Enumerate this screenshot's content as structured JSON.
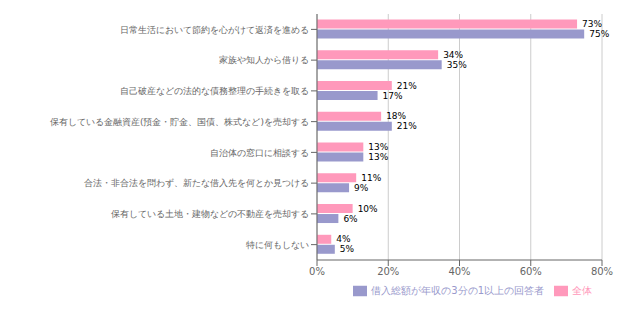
{
  "chart_data": {
    "type": "bar",
    "orientation": "horizontal",
    "categories": [
      "日常生活において節約を心がけて返済を進める",
      "家族や知人から借りる",
      "自己破産などの法的な債務整理の手続きを取る",
      "保有している金融資産(預金・貯金、国債、株式など)を売却する",
      "自治体の窓口に相談する",
      "合法・非合法を問わず、新たな借入先を何とか見つける",
      "保有している土地・建物などの不動産を売却する",
      "特に何もしない"
    ],
    "series": [
      {
        "name": "全体",
        "color": "#ff99bb",
        "values": [
          73,
          34,
          21,
          18,
          13,
          11,
          10,
          4
        ],
        "value_labels": [
          "73%",
          "34%",
          "21%",
          "18%",
          "13%",
          "11%",
          "10%",
          "4%"
        ]
      },
      {
        "name": "借入総額が年収の3分の1以上の回答者",
        "color": "#9999cc",
        "values": [
          75,
          35,
          17,
          21,
          13,
          9,
          6,
          5
        ],
        "value_labels": [
          "75%",
          "35%",
          "17%",
          "21%",
          "13%",
          "9%",
          "6%",
          "5%"
        ]
      }
    ],
    "xlim": [
      0,
      80
    ],
    "xticks": [
      {
        "value": 0,
        "label": "0%"
      },
      {
        "value": 20,
        "label": "20%"
      },
      {
        "value": 40,
        "label": "40%"
      },
      {
        "value": 60,
        "label": "60%"
      },
      {
        "value": 80,
        "label": "80%"
      }
    ],
    "grid": true,
    "legend": "lower right",
    "data_labels": true
  }
}
